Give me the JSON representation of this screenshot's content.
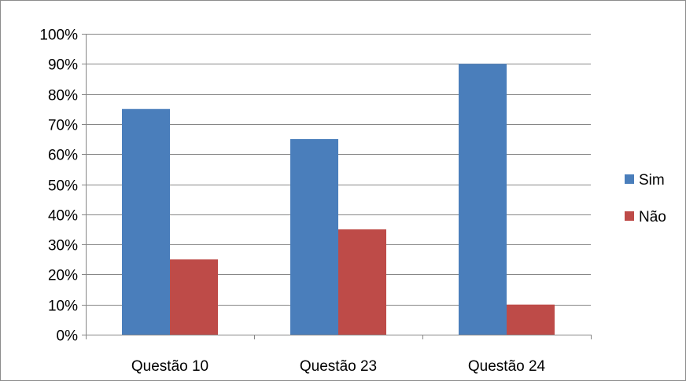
{
  "chart_data": {
    "type": "bar",
    "categories": [
      "Questão 10",
      "Questão 23",
      "Questão 24"
    ],
    "series": [
      {
        "name": "Sim",
        "values": [
          75,
          65,
          90
        ],
        "color": "#4a7ebb"
      },
      {
        "name": "Não",
        "values": [
          25,
          35,
          10
        ],
        "color": "#be4b48"
      }
    ],
    "ylim": [
      0,
      100
    ],
    "yticks": [
      "0%",
      "10%",
      "20%",
      "30%",
      "40%",
      "50%",
      "60%",
      "70%",
      "80%",
      "90%",
      "100%"
    ],
    "ytick_values": [
      0,
      10,
      20,
      30,
      40,
      50,
      60,
      70,
      80,
      90,
      100
    ],
    "grid": true,
    "legend_position": "right"
  }
}
